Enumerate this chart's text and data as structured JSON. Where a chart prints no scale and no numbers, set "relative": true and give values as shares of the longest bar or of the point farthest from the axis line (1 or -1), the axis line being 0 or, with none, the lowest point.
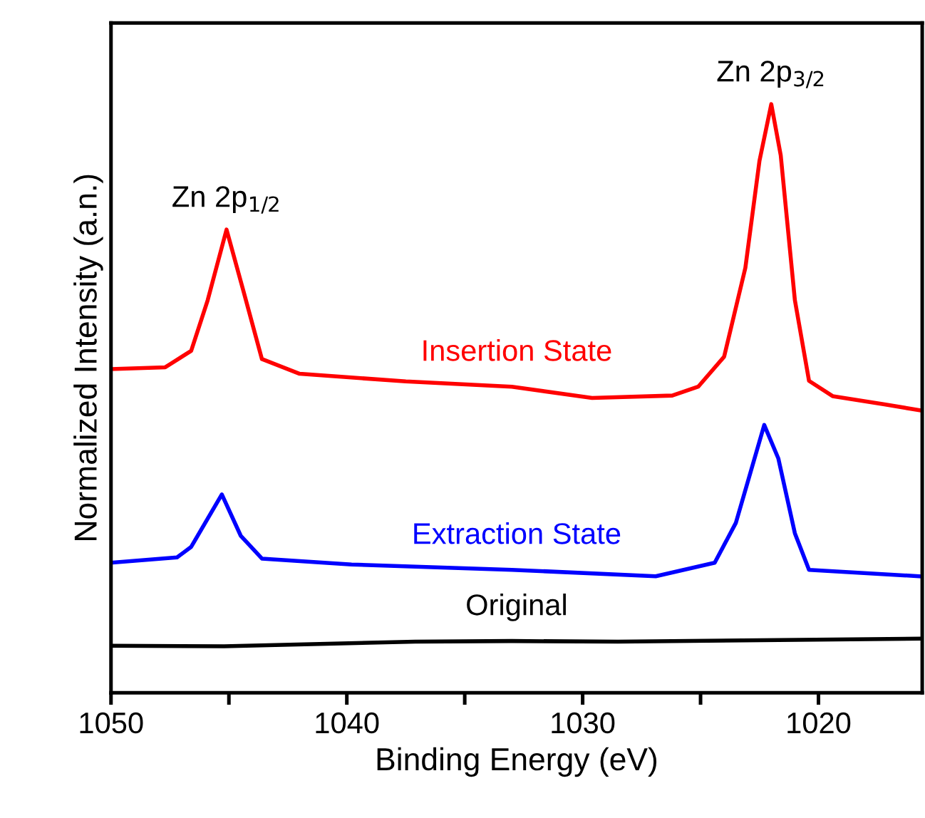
{
  "chart_data": {
    "type": "line",
    "relative": true,
    "xlabel": "Binding Energy (eV)",
    "ylabel": "Normalized Intensity (a.n.)",
    "xlim": [
      1050,
      1015.6
    ],
    "xticks": [
      1050,
      {
        "value": 1045,
        "label": null
      },
      1040,
      {
        "value": 1035,
        "label": null
      },
      1030,
      {
        "value": 1025,
        "label": null
      },
      1020
    ],
    "legend": false,
    "grid": false,
    "annotations": [
      {
        "text": "Zn 2p$_{1/2}$",
        "x": 1045.1,
        "y": 0.787
      },
      {
        "text": "Zn 2p$_{3/2}$",
        "x": 1022.0,
        "y": 1
      }
    ],
    "series": [
      {
        "name": "Insertion State",
        "color": "#ff0000",
        "x": [
          1050,
          1047.7,
          1046.6,
          1045.9,
          1045.1,
          1044.4,
          1043.6,
          1042.0,
          1037.5,
          1033.0,
          1029.6,
          1026.2,
          1025.1,
          1024.0,
          1023.1,
          1022.5,
          1022.0,
          1021.6,
          1021.0,
          1020.4,
          1019.4,
          1017.2,
          1015.7
        ],
        "values": [
          0.55,
          0.553,
          0.581,
          0.667,
          0.787,
          0.685,
          0.567,
          0.542,
          0.529,
          0.52,
          0.501,
          0.505,
          0.52,
          0.571,
          0.722,
          0.904,
          1,
          0.913,
          0.667,
          0.53,
          0.504,
          0.49,
          0.48
        ]
      },
      {
        "name": "Extraction State",
        "color": "#0000ff",
        "x": [
          1050,
          1047.2,
          1046.6,
          1045.3,
          1044.5,
          1043.6,
          1039.8,
          1033.0,
          1026.9,
          1024.4,
          1023.5,
          1022.3,
          1021.7,
          1021.0,
          1020.4,
          1015.7
        ],
        "values": [
          0.221,
          0.23,
          0.248,
          0.337,
          0.267,
          0.228,
          0.218,
          0.209,
          0.198,
          0.221,
          0.289,
          0.455,
          0.398,
          0.271,
          0.209,
          0.198
        ]
      },
      {
        "name": "Original",
        "color": "#000000",
        "x": [
          1050,
          1045.2,
          1037.1,
          1033.0,
          1028.5,
          1015.7
        ],
        "values": [
          0.08,
          0.079,
          0.087,
          0.088,
          0.087,
          0.092
        ]
      }
    ]
  }
}
